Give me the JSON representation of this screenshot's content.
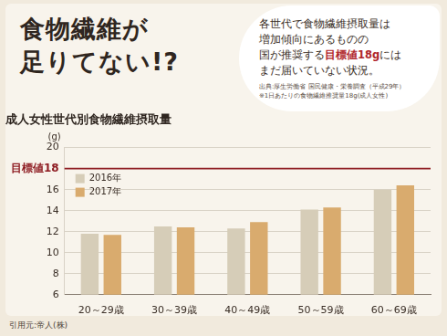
{
  "headline": [
    "食物繊維が",
    "足りてない!?"
  ],
  "callout": {
    "lines": [
      [
        {
          "text": "各世代で食物繊維摂取量は"
        }
      ],
      [
        {
          "text": "増加傾向にあるものの"
        }
      ],
      [
        {
          "text": "国が推奨する"
        },
        {
          "text": "目標値18g",
          "color": "#b0262b"
        },
        {
          "text": "には"
        }
      ],
      [
        {
          "text": "まだ届いていない状況。"
        }
      ]
    ],
    "source": [
      "出典:厚生労働省 国民健康・栄養調査（平成29年）",
      "※1日あたりの食物繊維推奨量18g(成人女性)"
    ]
  },
  "credit": "引用元:帝人(株)",
  "chart_data": {
    "type": "bar",
    "title": "成人女性世代別食物繊維摂取量",
    "y_label": "(g)",
    "categories": [
      "20～29歳",
      "30～39歳",
      "40～49歳",
      "50～59歳",
      "60～69歳"
    ],
    "series": [
      {
        "name": "2016年",
        "color": "#d6cdb8",
        "values": [
          11.8,
          12.5,
          12.3,
          14.1,
          16.0
        ]
      },
      {
        "name": "2017年",
        "color": "#d9ab6e",
        "values": [
          11.7,
          12.4,
          12.9,
          14.3,
          16.4
        ]
      }
    ],
    "ylim": [
      6,
      20
    ],
    "yticks": [
      6,
      8,
      10,
      12,
      14,
      16,
      {
        "value": 18,
        "label": "目標値18"
      },
      20
    ],
    "target_line": {
      "value": 18,
      "color": "#8e1c22"
    },
    "grid": true,
    "legend": "upper left"
  }
}
